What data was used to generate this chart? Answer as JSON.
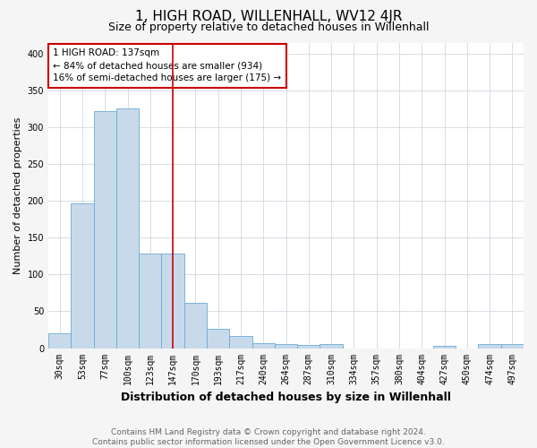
{
  "title": "1, HIGH ROAD, WILLENHALL, WV12 4JR",
  "subtitle": "Size of property relative to detached houses in Willenhall",
  "xlabel": "Distribution of detached houses by size in Willenhall",
  "ylabel": "Number of detached properties",
  "footnote": "Contains HM Land Registry data © Crown copyright and database right 2024.\nContains public sector information licensed under the Open Government Licence v3.0.",
  "bar_labels": [
    "30sqm",
    "53sqm",
    "77sqm",
    "100sqm",
    "123sqm",
    "147sqm",
    "170sqm",
    "193sqm",
    "217sqm",
    "240sqm",
    "264sqm",
    "287sqm",
    "310sqm",
    "334sqm",
    "357sqm",
    "380sqm",
    "404sqm",
    "427sqm",
    "450sqm",
    "474sqm",
    "497sqm"
  ],
  "bar_values": [
    20,
    197,
    322,
    325,
    128,
    128,
    62,
    26,
    17,
    7,
    5,
    4,
    5,
    0,
    0,
    0,
    0,
    3,
    0,
    5,
    5
  ],
  "bar_color": "#c8daea",
  "bar_edge_color": "#6aaad4",
  "property_line_x": 5.0,
  "annotation_text": "1 HIGH ROAD: 137sqm\n← 84% of detached houses are smaller (934)\n16% of semi-detached houses are larger (175) →",
  "annotation_box_color": "white",
  "annotation_box_edge_color": "#cc0000",
  "red_line_color": "#cc0000",
  "ylim": [
    0,
    415
  ],
  "yticks": [
    0,
    50,
    100,
    150,
    200,
    250,
    300,
    350,
    400
  ],
  "bg_color": "#f5f5f5",
  "plot_bg_color": "white",
  "grid_color": "#d0d8e0",
  "title_fontsize": 11,
  "subtitle_fontsize": 9,
  "ylabel_fontsize": 8,
  "xlabel_fontsize": 9,
  "tick_fontsize": 7,
  "annot_fontsize": 7.5,
  "footnote_fontsize": 6.5,
  "footnote_color": "#666666"
}
